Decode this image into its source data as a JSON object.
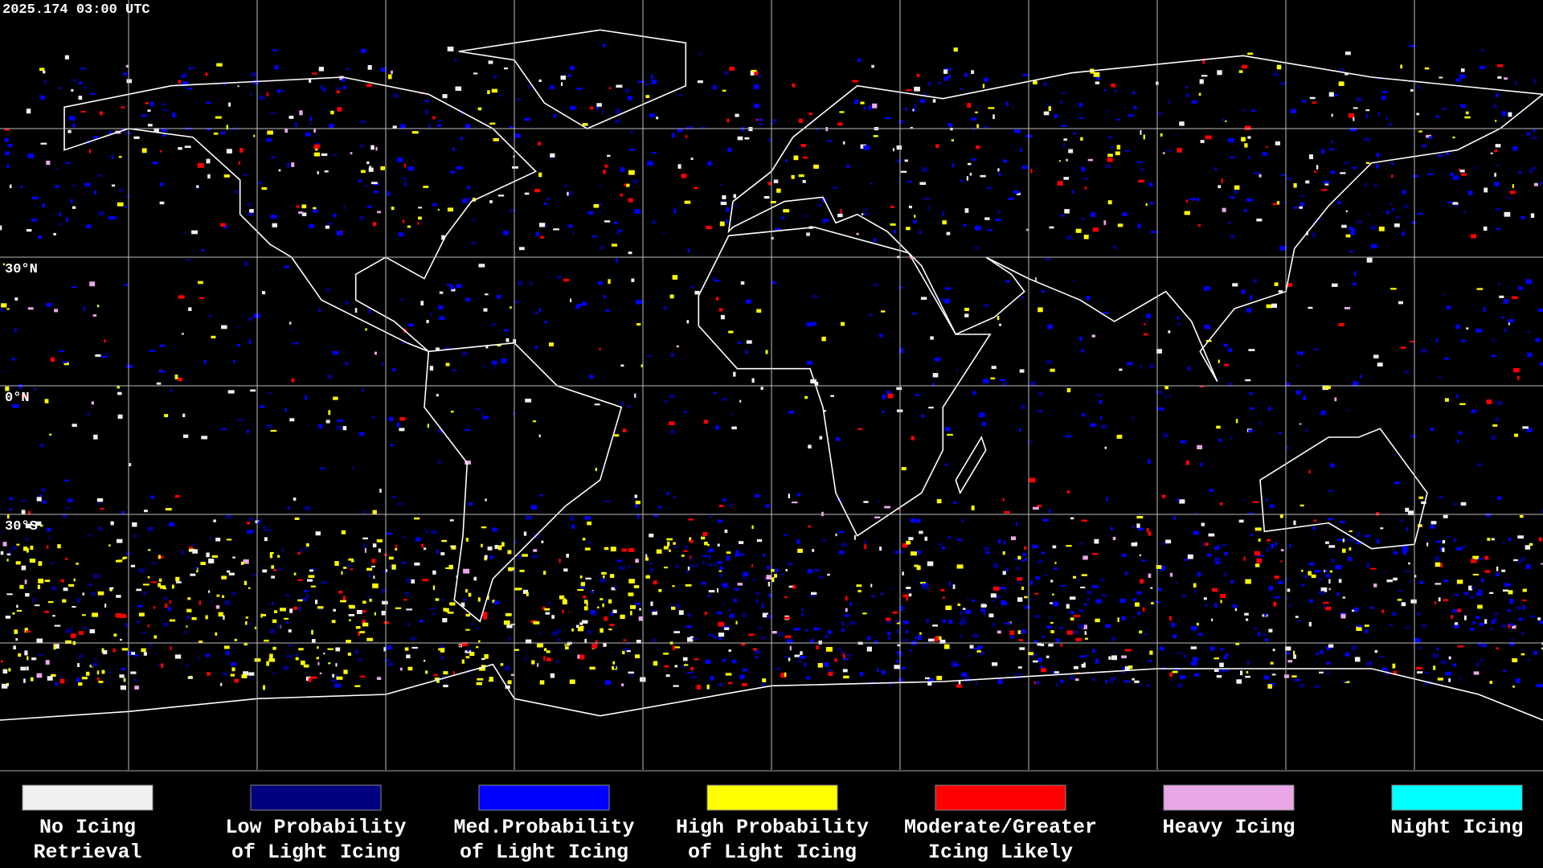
{
  "header": {
    "timestamp": "2025.174 03:00 UTC"
  },
  "map": {
    "latitude_labels": [
      "30°N",
      "0°N",
      "30°S"
    ]
  },
  "legend": {
    "items": [
      {
        "label": [
          "No Icing",
          "Retrieval"
        ],
        "color": "#f0f0f0"
      },
      {
        "label": [
          "Low Probability",
          "of Light Icing"
        ],
        "color": "#000080"
      },
      {
        "label": [
          "Med.Probability",
          "of Light Icing"
        ],
        "color": "#0000ff"
      },
      {
        "label": [
          "High Probability",
          "of Light Icing"
        ],
        "color": "#ffff00"
      },
      {
        "label": [
          "Moderate/Greater",
          "Icing Likely"
        ],
        "color": "#ff0000"
      },
      {
        "label": [
          "Heavy Icing"
        ],
        "color": "#e8a8e8"
      },
      {
        "label": [
          "Night Icing"
        ],
        "color": "#00ffff"
      }
    ]
  }
}
